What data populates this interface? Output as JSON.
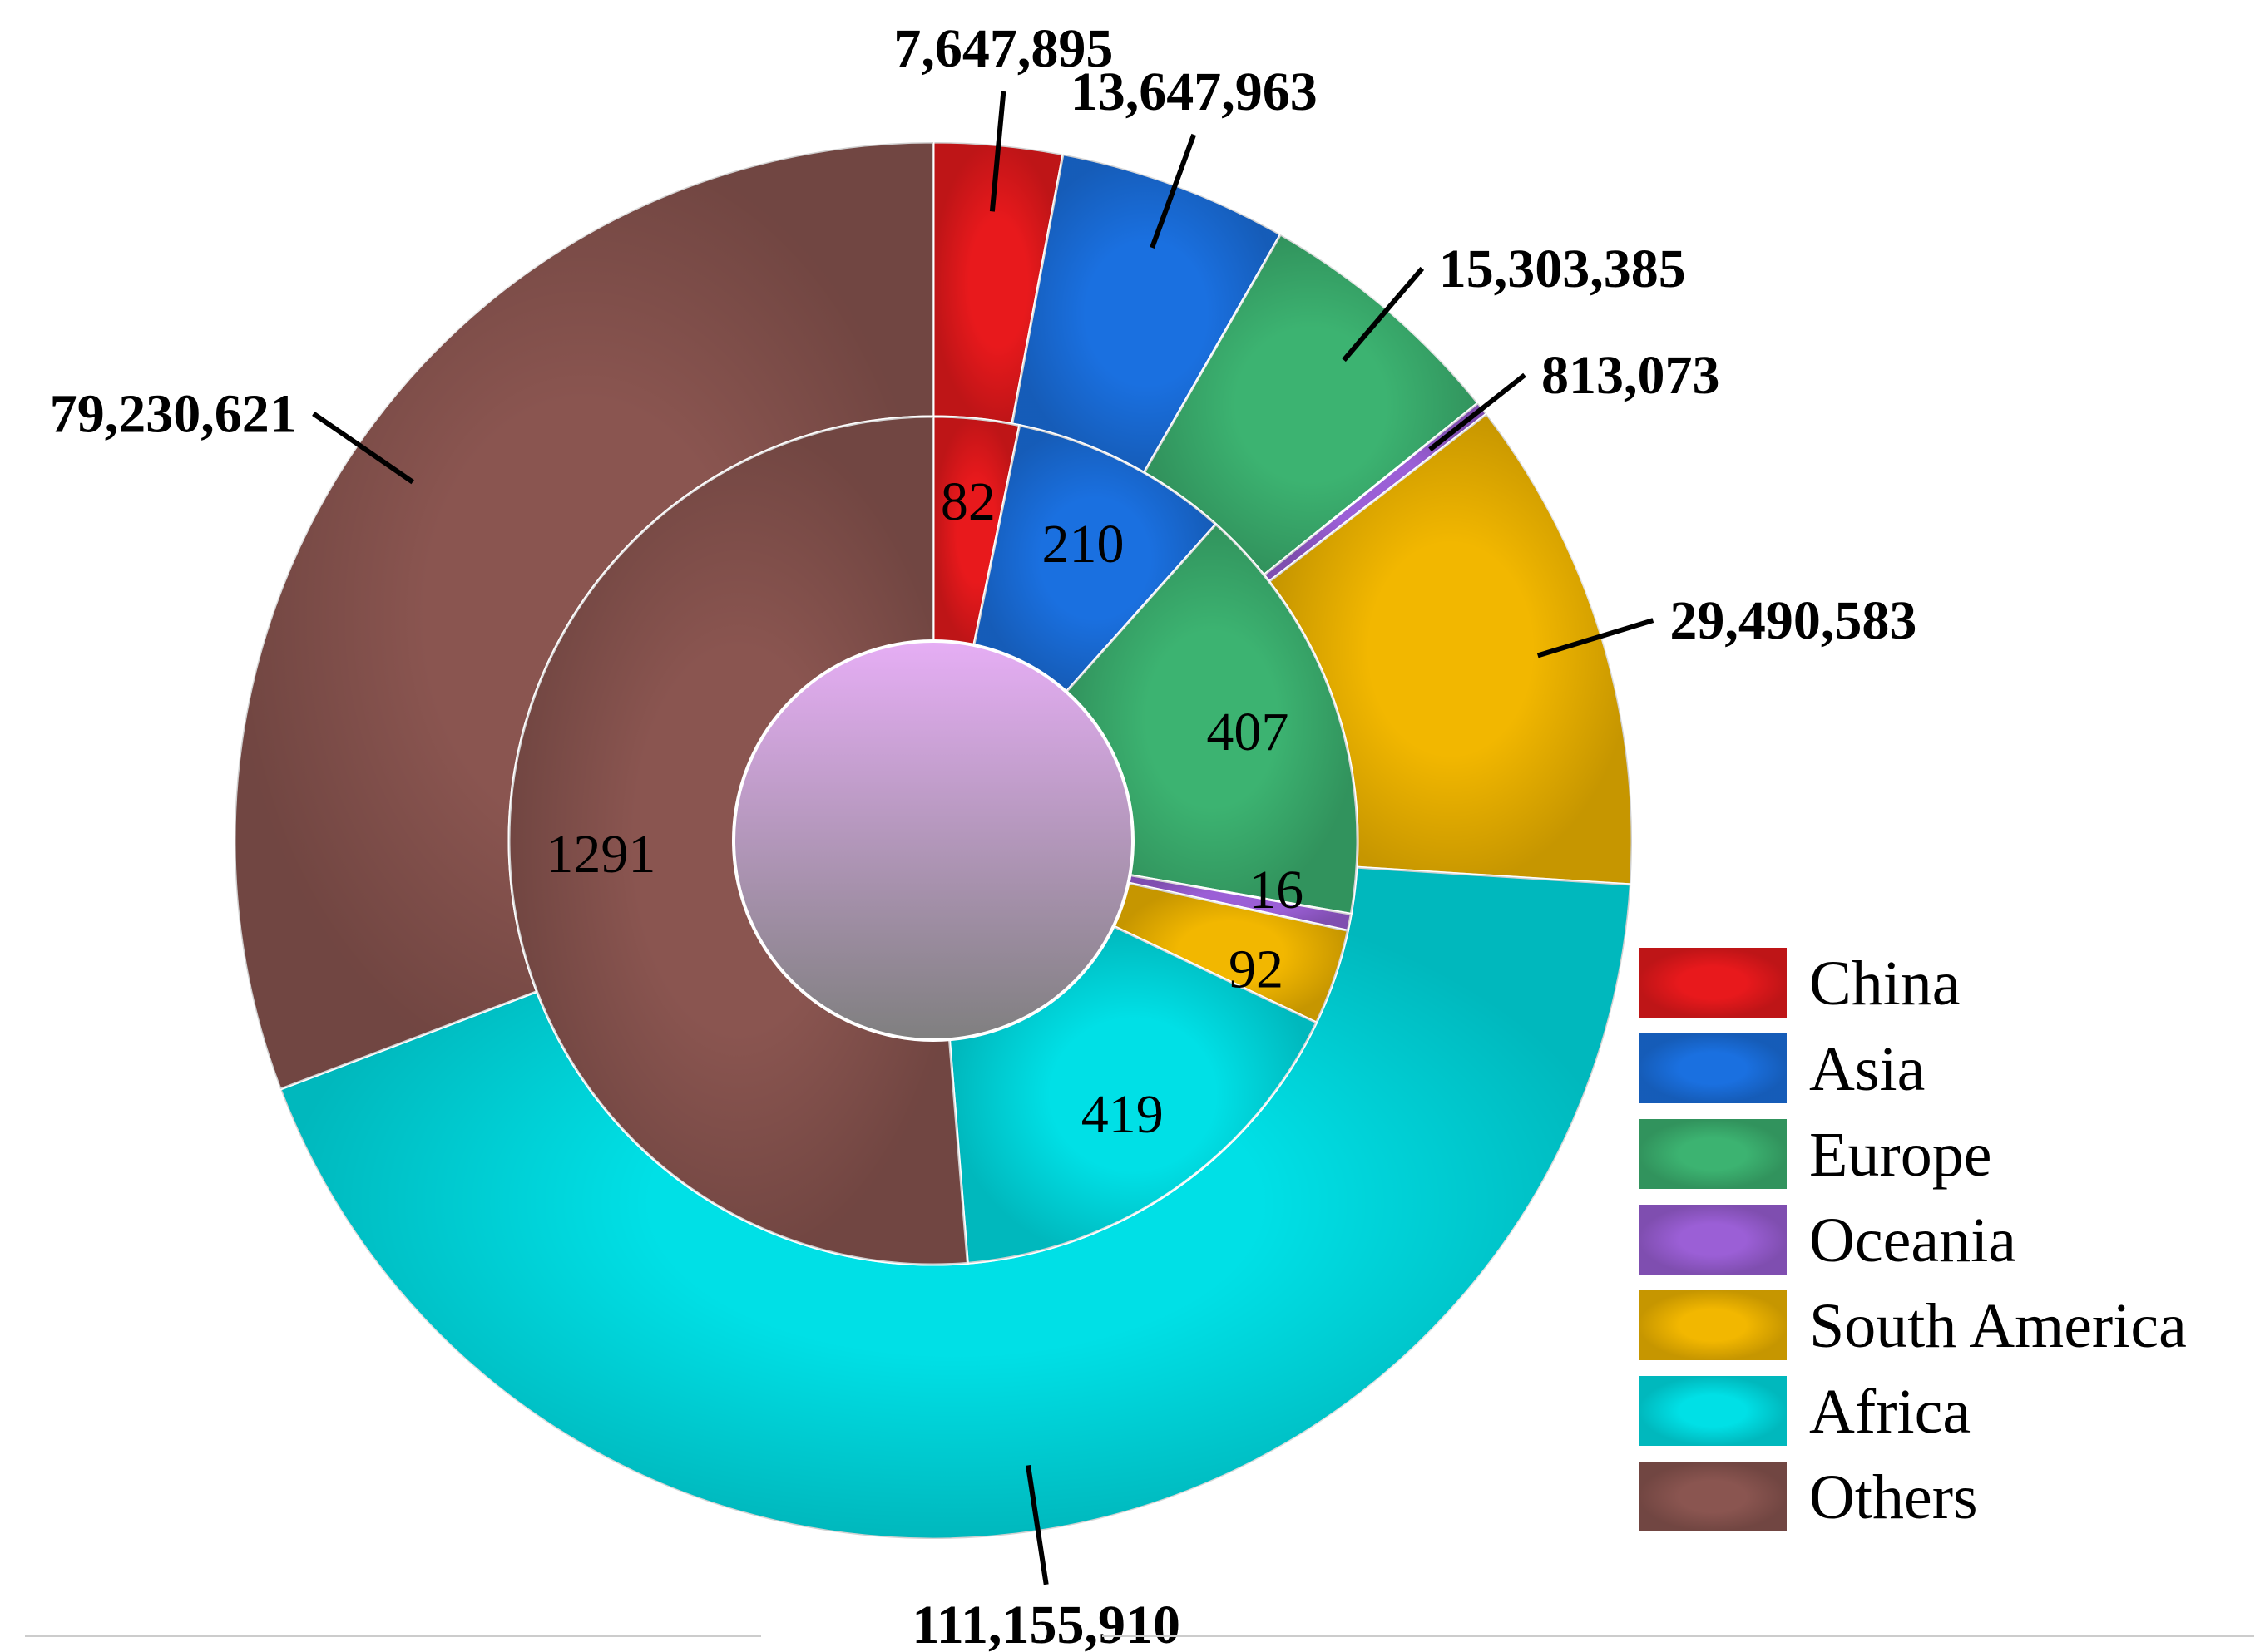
{
  "chart_data": {
    "type": "pie",
    "subtype": "nested-donut",
    "categories": [
      "China",
      "Asia",
      "Europe",
      "Oceania",
      "South America",
      "Africa",
      "Others"
    ],
    "colors": [
      "#e8191c",
      "#1a70e0",
      "#3cb371",
      "#9b5fd6",
      "#f2b700",
      "#00e0e6",
      "#8a5550"
    ],
    "series": [
      {
        "values": [
          82,
          210,
          407,
          16,
          92,
          419,
          1291
        ]
      },
      {
        "values": [
          7647895,
          13647963,
          15303385,
          813073,
          29490583,
          111155910,
          79230621
        ]
      }
    ],
    "inner_labels": [
      "82",
      "210",
      "407",
      "16",
      "92",
      "419",
      "1291"
    ],
    "outer_labels": [
      "7,647,895",
      "13,647,963",
      "15,303,385",
      "813,073",
      "29,490,583",
      "111,155,910",
      "79,230,621"
    ],
    "legend": {
      "position": "bottom-right",
      "entries": [
        "China",
        "Asia",
        "Europe",
        "Oceania",
        "South America",
        "Africa",
        "Others"
      ]
    },
    "center_color": "#e6aef5"
  }
}
